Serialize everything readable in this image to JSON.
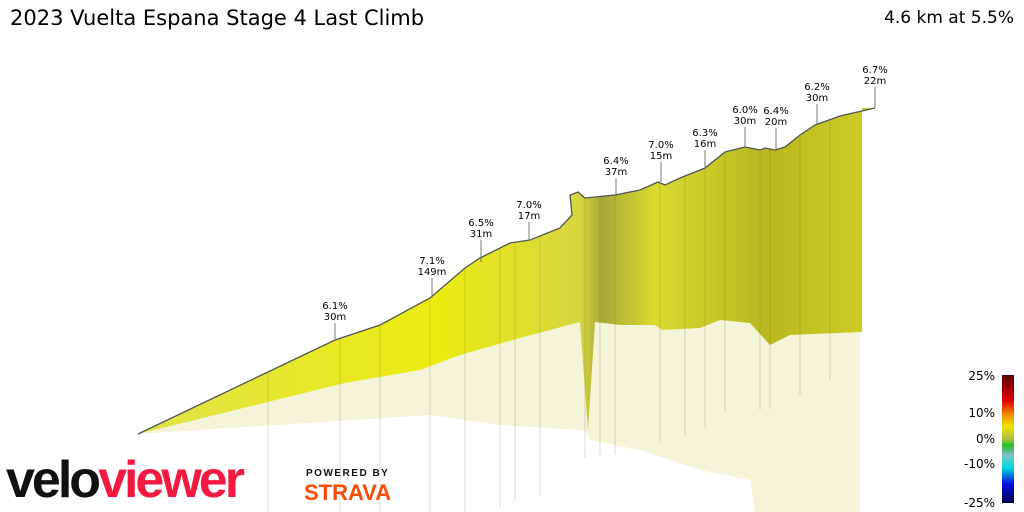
{
  "header": {
    "title": "2023 Vuelta Espana Stage 4 Last Climb",
    "summary": "4.6 km at 5.5%"
  },
  "branding": {
    "logo_part1": "velo",
    "logo_part2": "viewer",
    "powered_by": "POWERED BY",
    "strava": "STRAVA"
  },
  "chart_data": {
    "type": "area",
    "title": "2023 Vuelta Espana Stage 4 Last Climb",
    "subtitle": "4.6 km at 5.5%",
    "segments": [
      {
        "gradient": "6.1%",
        "gain": "30m"
      },
      {
        "gradient": "7.1%",
        "gain": "149m"
      },
      {
        "gradient": "6.5%",
        "gain": "31m"
      },
      {
        "gradient": "7.0%",
        "gain": "17m"
      },
      {
        "gradient": "6.4%",
        "gain": "37m"
      },
      {
        "gradient": "7.0%",
        "gain": "15m"
      },
      {
        "gradient": "6.3%",
        "gain": "16m"
      },
      {
        "gradient": "6.0%",
        "gain": "30m"
      },
      {
        "gradient": "6.4%",
        "gain": "20m"
      },
      {
        "gradient": "6.2%",
        "gain": "30m"
      },
      {
        "gradient": "6.7%",
        "gain": "22m"
      }
    ],
    "color_scale": {
      "ticks": [
        "25%",
        "10%",
        "0%",
        "-10%",
        "-25%"
      ],
      "colors": [
        "#5a0000",
        "#e00000",
        "#f0e000",
        "#20c020",
        "#00e0e0",
        "#0010e0",
        "#000050"
      ]
    },
    "fill_color": "#e4e43a"
  }
}
